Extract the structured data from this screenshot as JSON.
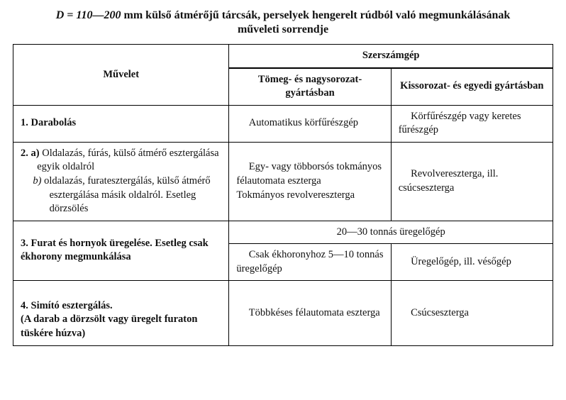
{
  "title_line1_prefix": "D = 110—200",
  "title_line1_rest": " mm külső átmérőjű tárcsák, perselyek hengerelt rúdból való megmunkálásának",
  "title_line2": "műveleti sorrendje",
  "headers": {
    "operation": "Művelet",
    "tool": "Szerszámgép",
    "mass": "Tömeg- és nagysorozat-gyártásban",
    "small": "Kissorozat- és egyedi gyártásban"
  },
  "rows": {
    "r1": {
      "op": "1. Darabolás",
      "mass": "Automatikus körfűrészgép",
      "small": "Körfűrészgép vagy keretes fűrészgép"
    },
    "r2": {
      "op_a_label": "2. a)",
      "op_a": " Oldalazás, fúrás, külső átmérő esztergálása egyik oldalról",
      "op_b_label": "b)",
      "op_b": " oldalazás, furatesztergálás, külső átmérő esztergálása másik oldalról. Esetleg dörzsölés",
      "mass": "Egy- vagy többorsós tokmányos félautomata eszterga\nTokmányos revolvereszterga",
      "small": "Revolvereszterga, ill. csúcseszterga"
    },
    "r3": {
      "op": "3. Furat és hornyok üregelése. Esetleg csak ékhorony megmunkálása",
      "span": "20—30 tonnás üregelőgép",
      "mass": "Csak ékhoronyhoz 5—10 tonnás üregelőgép",
      "small": "Üregelőgép, ill. vésőgép"
    },
    "r4": {
      "op": "4. Simító esztergálás.\n(A darab a dörzsölt vagy üregelt furaton tüskére húzva)",
      "mass": "Többkéses félautomata eszterga",
      "small": "Csúcseszterga"
    }
  }
}
